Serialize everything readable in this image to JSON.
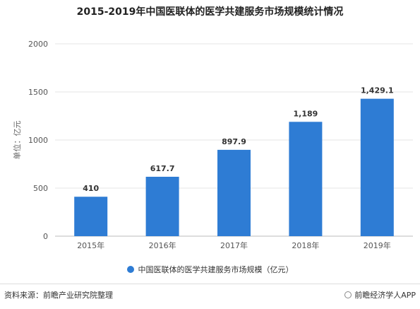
{
  "chart_data": {
    "type": "bar",
    "title": "2015-2019年中国医联体的医学共建服务市场规模统计情况",
    "ylabel": "单位：亿元",
    "categories": [
      "2015年",
      "2016年",
      "2017年",
      "2018年",
      "2019年"
    ],
    "series": [
      {
        "name": "中国医联体的医学共建服务市场规模（亿元）",
        "values": [
          410,
          617.7,
          897.9,
          1189,
          1429.1
        ]
      }
    ],
    "value_labels": [
      "410",
      "617.7",
      "897.9",
      "1,189",
      "1,429.1"
    ],
    "y_ticks": [
      "0",
      "500",
      "1000",
      "1500",
      "2000"
    ],
    "ylim": [
      0,
      2000
    ],
    "grid": true,
    "legend_position": "bottom",
    "bar_color": "#2E7CD4"
  },
  "footer": {
    "source": "资料来源：前瞻产业研究院整理",
    "brand": "前瞻经济学人APP"
  }
}
